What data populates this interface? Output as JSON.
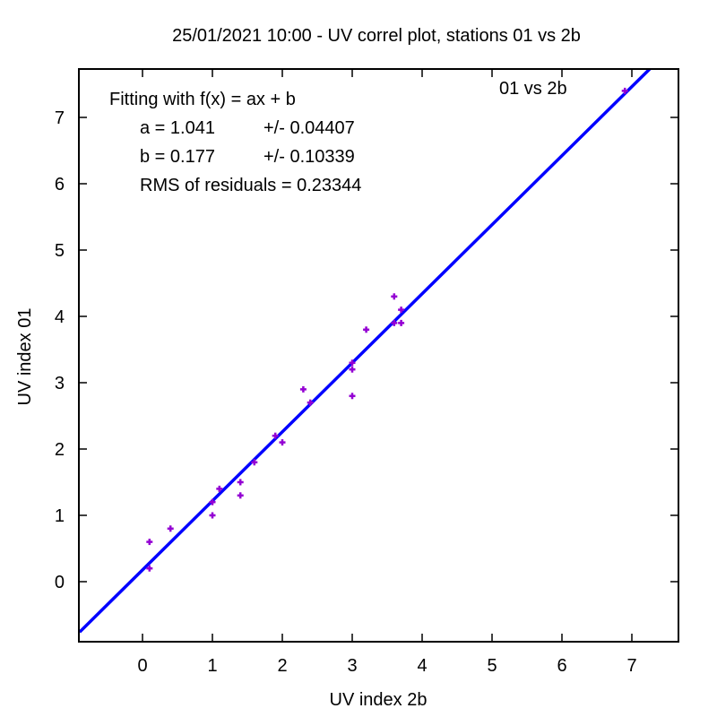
{
  "chart_data": {
    "type": "scatter",
    "title": "25/01/2021 10:00 - UV correl plot, stations 01 vs 2b",
    "xlabel": "UV index 2b",
    "ylabel": "UV index 01",
    "xlim": [
      -0.9,
      7.7
    ],
    "ylim": [
      -0.9,
      7.7
    ],
    "xticks": [
      0,
      1,
      2,
      3,
      4,
      5,
      6,
      7
    ],
    "yticks": [
      0,
      1,
      2,
      3,
      4,
      5,
      6,
      7
    ],
    "grid": false,
    "legend_position": "top-right",
    "annotation": {
      "line1": "Fitting with f(x) = ax + b",
      "a_label": "a = 1.041",
      "a_err": "+/- 0.04407",
      "b_label": "b = 0.177",
      "b_err": "+/- 0.10339",
      "rms": "RMS of residuals = 0.23344"
    },
    "series": [
      {
        "name": "01 vs 2b",
        "color": "#9400d3",
        "points": [
          [
            0.1,
            0.6
          ],
          [
            0.1,
            0.2
          ],
          [
            0.4,
            0.8
          ],
          [
            1.0,
            1.0
          ],
          [
            1.0,
            1.2
          ],
          [
            1.1,
            1.4
          ],
          [
            1.4,
            1.5
          ],
          [
            1.4,
            1.3
          ],
          [
            1.6,
            1.8
          ],
          [
            1.9,
            2.2
          ],
          [
            2.0,
            2.1
          ],
          [
            2.3,
            2.9
          ],
          [
            2.4,
            2.7
          ],
          [
            3.0,
            3.3
          ],
          [
            3.0,
            3.2
          ],
          [
            3.0,
            2.8
          ],
          [
            3.2,
            3.8
          ],
          [
            3.6,
            4.3
          ],
          [
            3.6,
            3.9
          ],
          [
            3.7,
            4.1
          ],
          [
            3.7,
            3.9
          ],
          [
            6.9,
            7.4
          ]
        ]
      }
    ],
    "fit": {
      "slope": 1.041,
      "intercept": 0.177,
      "color": "#0000ff"
    }
  }
}
